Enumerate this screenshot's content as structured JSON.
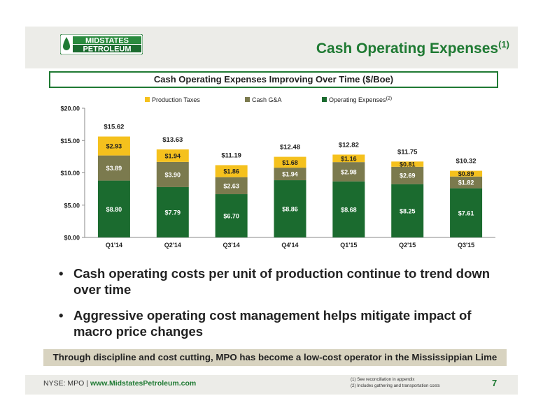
{
  "logo": {
    "line1": "MIDSTATES",
    "line2": "PETROLEUM"
  },
  "title": {
    "main": "Cash Operating Expenses",
    "footnote_ref": "(1)"
  },
  "box_title": "Cash Operating Expenses Improving Over Time ($/Boe)",
  "chart_data": {
    "type": "bar",
    "stacked": true,
    "categories": [
      "Q1'14",
      "Q2'14",
      "Q3'14",
      "Q4'14",
      "Q1'15",
      "Q2'15",
      "Q3'15"
    ],
    "series": [
      {
        "name": "Operating Expenses",
        "name_footnote": "(2)",
        "color": "#1b6b2f",
        "values": [
          8.8,
          7.79,
          6.7,
          8.86,
          8.68,
          8.25,
          7.61
        ],
        "labels": [
          "$8.80",
          "$7.79",
          "$6.70",
          "$8.86",
          "$8.68",
          "$8.25",
          "$7.61"
        ]
      },
      {
        "name": "Cash G&A",
        "color": "#7b7a4e",
        "values": [
          3.89,
          3.9,
          2.63,
          1.94,
          2.98,
          2.69,
          1.82
        ],
        "labels": [
          "$3.89",
          "$3.90",
          "$2.63",
          "$1.94",
          "$2.98",
          "$2.69",
          "$1.82"
        ]
      },
      {
        "name": "Production Taxes",
        "color": "#f5c11d",
        "values": [
          2.93,
          1.94,
          1.86,
          1.68,
          1.16,
          0.81,
          0.89
        ],
        "labels": [
          "$2.93",
          "$1.94",
          "$1.86",
          "$1.68",
          "$1.16",
          "$0.81",
          "$0.89"
        ]
      }
    ],
    "totals": [
      "$15.62",
      "$13.63",
      "$11.19",
      "$12.48",
      "$12.82",
      "$11.75",
      "$10.32"
    ],
    "y_ticks": [
      0,
      5,
      10,
      15,
      20
    ],
    "y_tick_labels": [
      "$0.00",
      "$5.00",
      "$10.00",
      "$15.00",
      "$20.00"
    ],
    "ylim": [
      0,
      20
    ],
    "legend_order": [
      "Production Taxes",
      "Cash G&A",
      "Operating Expenses"
    ],
    "legend_position": "top",
    "grid": false
  },
  "bullets": [
    "Cash operating costs per unit of production continue to trend down over time",
    "Aggressive operating cost management helps mitigate impact of macro price changes"
  ],
  "bullet_glyph": "•",
  "callout": "Through discipline and cost cutting, MPO has become a low-cost operator in the Mississippian Lime",
  "footer": {
    "ticker": "NYSE: MPO",
    "separator": "|",
    "url": "www.MidstatesPetroleum.com"
  },
  "footnotes": [
    "(1)    See reconciliation in appendix",
    "(2)    Includes gathering and transportation costs"
  ],
  "page_number": "7",
  "colors": {
    "brand_green": "#1f7a33",
    "header_gray": "#ecece8",
    "callout_tan": "#d8d3c0"
  }
}
